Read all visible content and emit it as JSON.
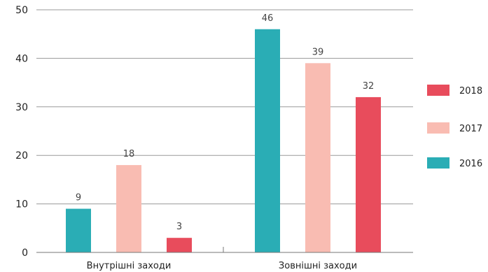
{
  "chart_data": {
    "type": "bar",
    "title": "",
    "xlabel": "",
    "ylabel": "",
    "categories": [
      "Внутрішні заходи",
      "Зовнішні заходи"
    ],
    "series": [
      {
        "name": "2016",
        "color": "#2aadb5",
        "values": [
          9,
          46
        ]
      },
      {
        "name": "2017",
        "color": "#f9bcb2",
        "values": [
          18,
          39
        ]
      },
      {
        "name": "2018",
        "color": "#e84c5c",
        "values": [
          3,
          32
        ]
      }
    ],
    "ylim": [
      0,
      50
    ],
    "yticks": [
      0,
      10,
      20,
      30,
      40,
      50
    ],
    "grid": true,
    "legend": {
      "position": "right",
      "order": [
        "2018",
        "2017",
        "2016"
      ]
    },
    "data_labels": true
  }
}
